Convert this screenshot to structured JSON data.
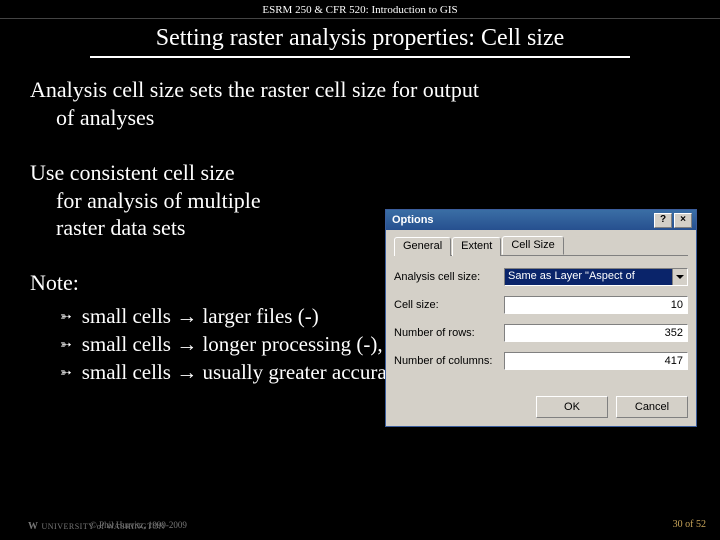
{
  "header": {
    "course": "ESRM 250 & CFR 520: Introduction to GIS",
    "title": "Setting raster analysis properties: Cell size"
  },
  "body": {
    "para1_line1": "Analysis cell size sets the raster cell size for output",
    "para1_line2": "of analyses",
    "para2_line1": "Use consistent cell size",
    "para2_line2": "for analysis of multiple",
    "para2_line3": "raster data sets",
    "note_label": "Note:",
    "bullets": [
      "small cells → larger files (-)",
      "small cells → longer processing (-), but …",
      "small cells → usually greater accuracy (+)"
    ]
  },
  "dialog": {
    "title": "Options",
    "help_btn": "?",
    "close_btn": "×",
    "tabs": {
      "general": "General",
      "extent": "Extent",
      "cellsize": "Cell Size"
    },
    "rows": {
      "analysis_label": "Analysis cell size:",
      "analysis_value": "Same as Layer \"Aspect of",
      "cellsize_label": "Cell size:",
      "cellsize_value": "10",
      "rows_label": "Number of rows:",
      "rows_value": "352",
      "cols_label": "Number of columns:",
      "cols_value": "417"
    },
    "buttons": {
      "ok": "OK",
      "cancel": "Cancel"
    }
  },
  "footer": {
    "logo_text": "UNIVERSITY of WASHINGTON",
    "logo_w": "W",
    "copyright": "© Phil Hurvitz, 1999-2009",
    "page": "30 of 52"
  },
  "colors": {
    "background": "#000000",
    "text": "#ffffff",
    "titlebar_grad_top": "#3a6ea5",
    "titlebar_grad_bot": "#27508f",
    "dialog_face": "#d4d0c8",
    "selection": "#0a246a",
    "pagenum": "#caa65a"
  }
}
